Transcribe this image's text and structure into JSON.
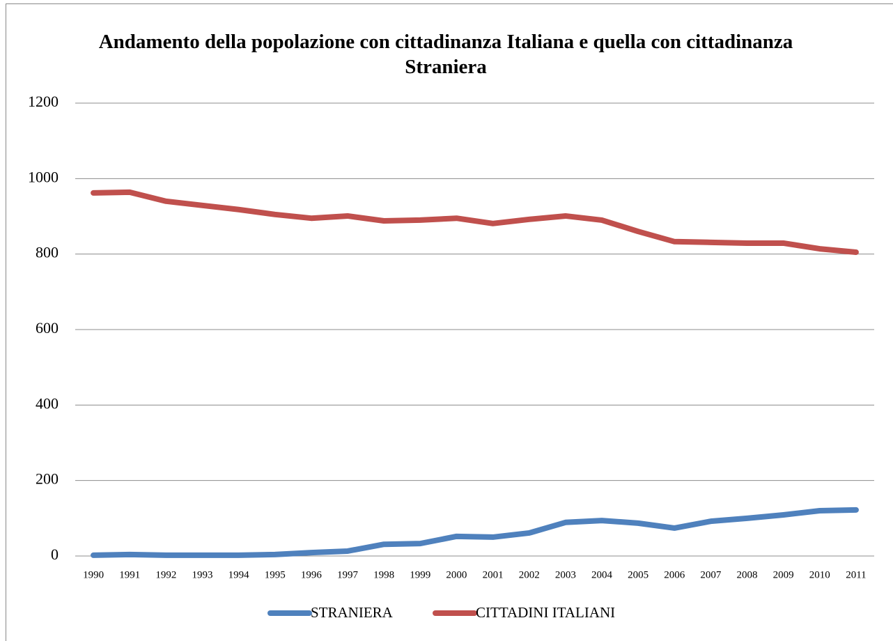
{
  "chart_data": {
    "type": "line",
    "title": "Andamento della popolazione con cittadinanza Italiana e quella con cittadinanza Straniera",
    "categories": [
      "1990",
      "1991",
      "1992",
      "1993",
      "1994",
      "1995",
      "1996",
      "1997",
      "1998",
      "1999",
      "2000",
      "2001",
      "2002",
      "2003",
      "2004",
      "2005",
      "2006",
      "2007",
      "2008",
      "2009",
      "2010",
      "2011"
    ],
    "series": [
      {
        "name": "STRANIERA",
        "color": "#4f81bd",
        "values": [
          2,
          4,
          2,
          2,
          2,
          4,
          9,
          13,
          31,
          33,
          52,
          50,
          61,
          89,
          94,
          87,
          74,
          92,
          100,
          109,
          120,
          122
        ]
      },
      {
        "name": "CITTADINI ITALIANI",
        "color": "#c0504d",
        "values": [
          962,
          964,
          940,
          929,
          918,
          905,
          895,
          901,
          888,
          890,
          895,
          881,
          892,
          901,
          890,
          860,
          833,
          831,
          829,
          829,
          814,
          805
        ]
      }
    ],
    "ylim": [
      0,
      1200
    ],
    "yticks": [
      0,
      200,
      400,
      600,
      800,
      1000,
      1200
    ],
    "grid": true,
    "legend": "bottom"
  }
}
